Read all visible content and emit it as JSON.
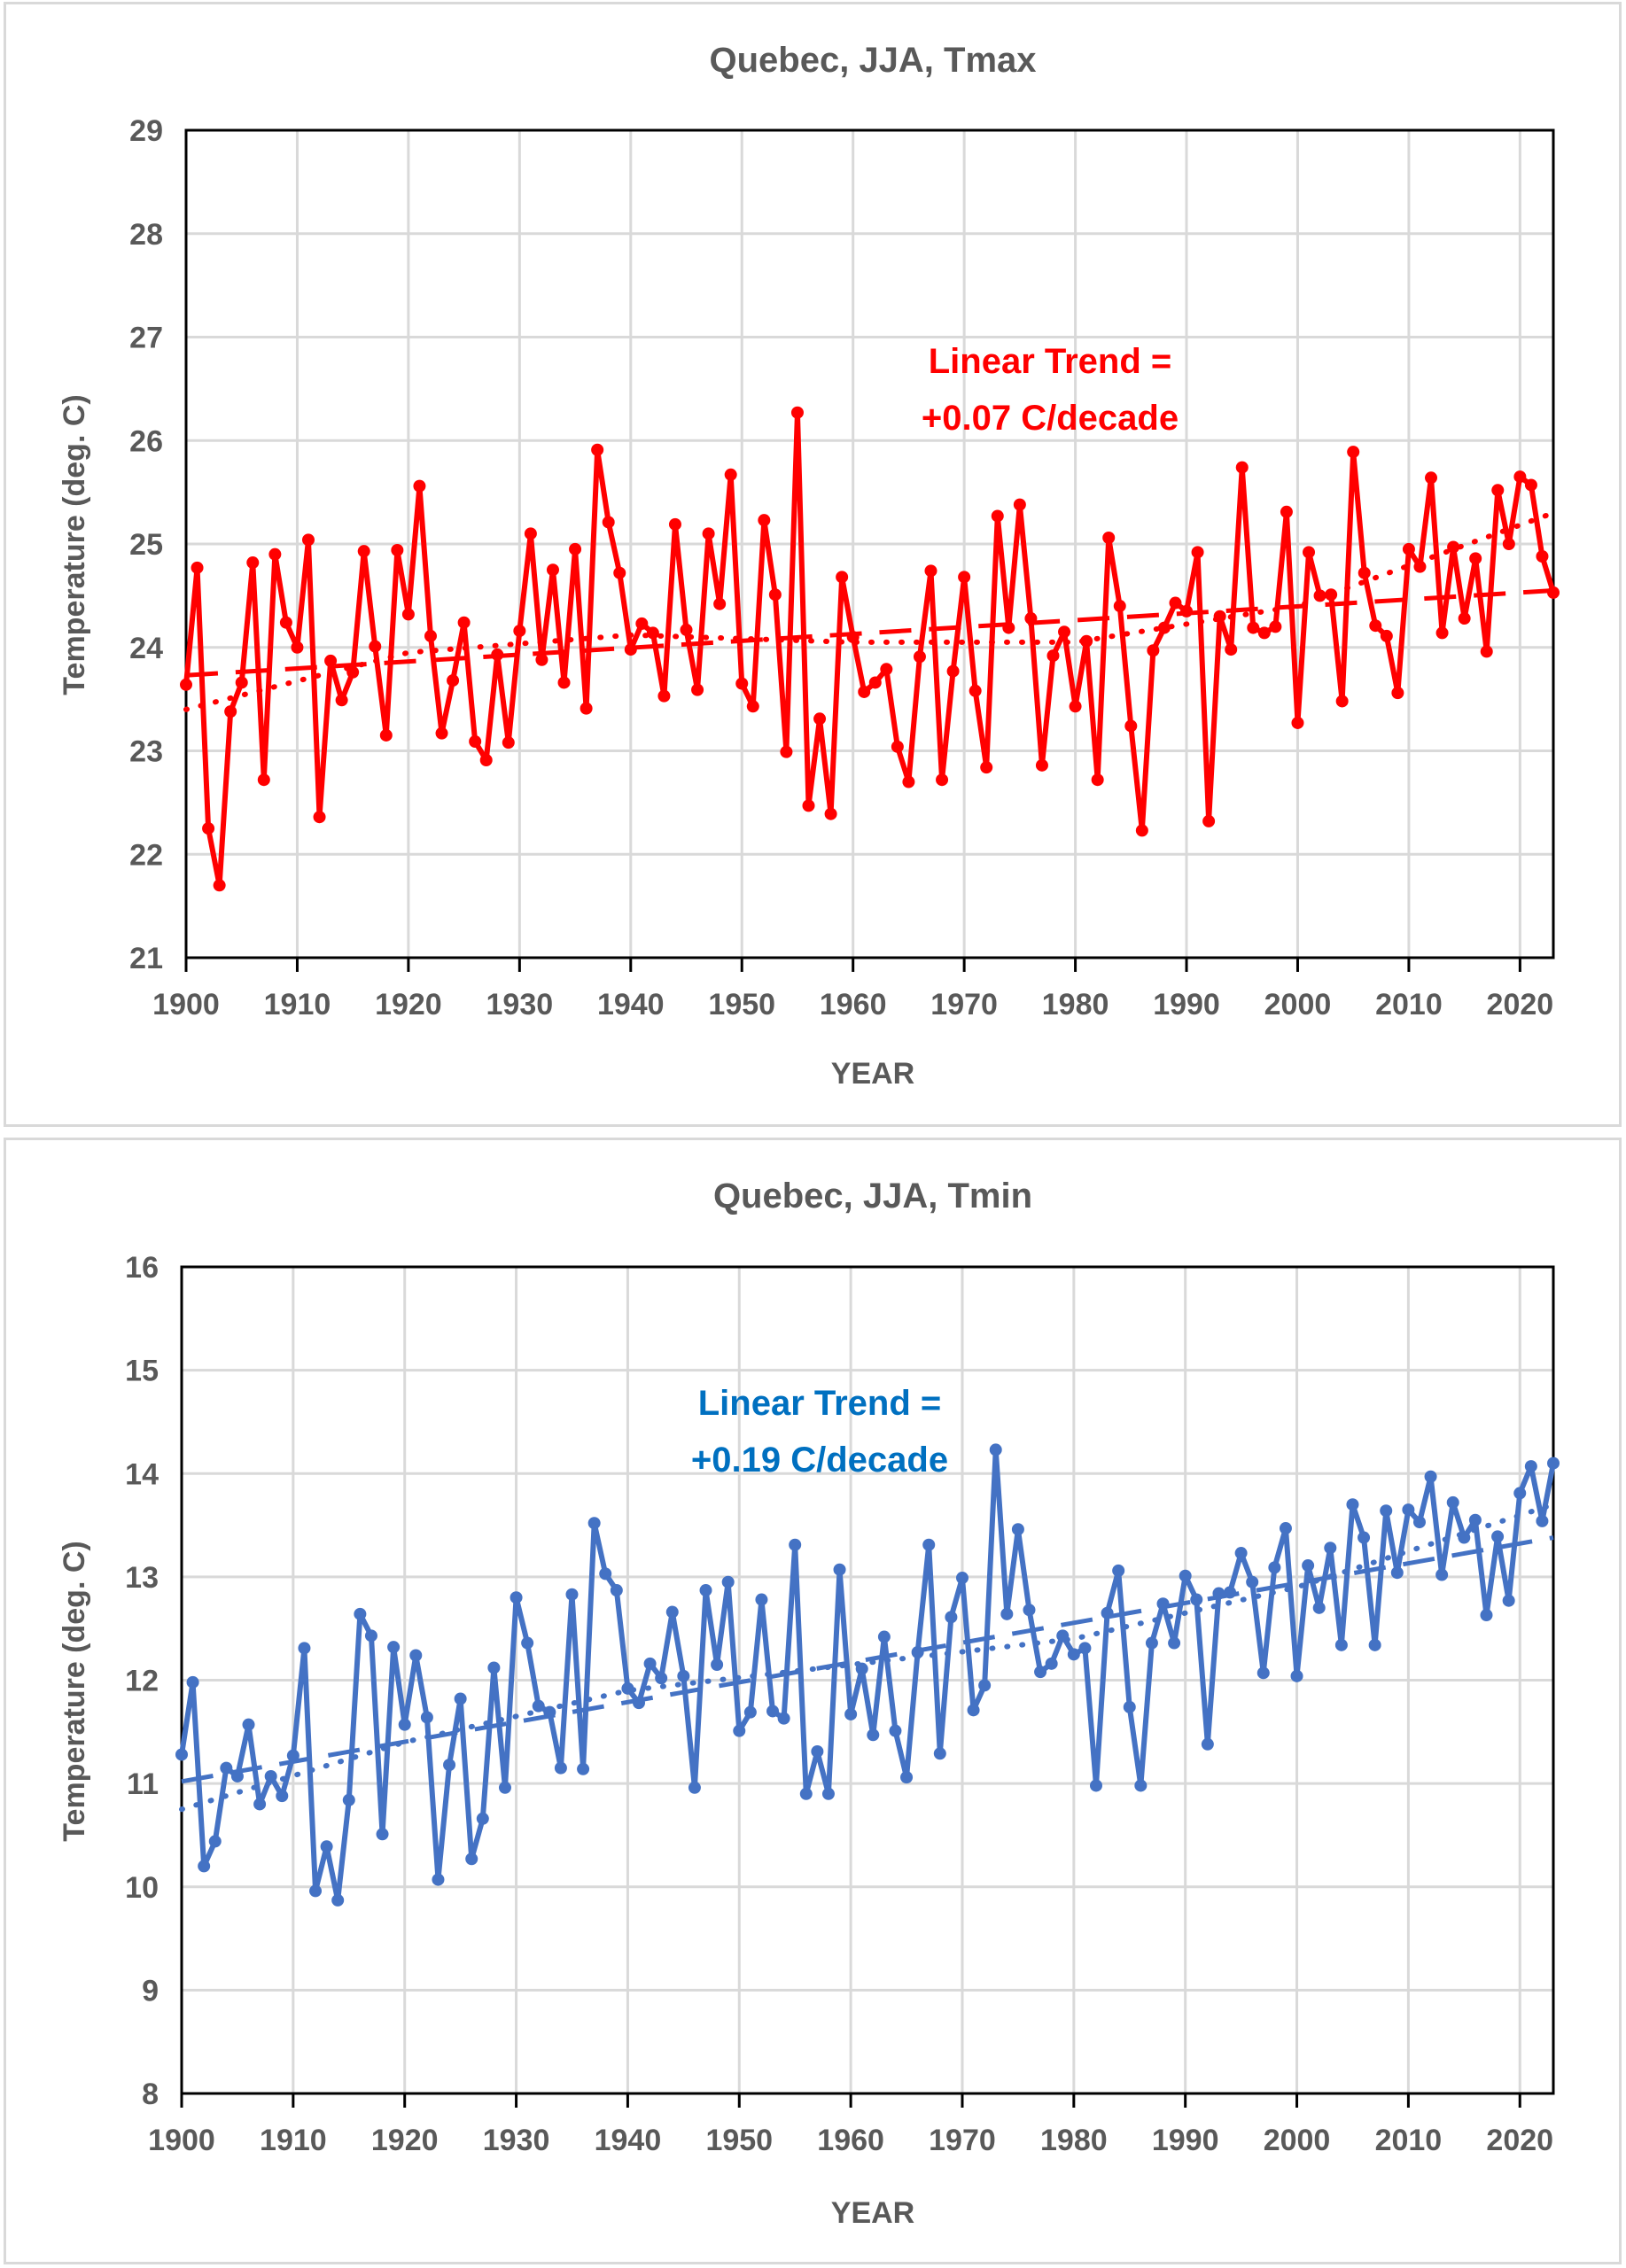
{
  "chart_data": [
    {
      "type": "line",
      "title": "Quebec, JJA, Tmax",
      "xlabel": "YEAR",
      "ylabel": "Temperature (deg. C)",
      "xlim": [
        1900,
        2023
      ],
      "ylim": [
        21,
        29
      ],
      "xticks": [
        1900,
        1910,
        1920,
        1930,
        1940,
        1950,
        1960,
        1970,
        1980,
        1990,
        2000,
        2010,
        2020
      ],
      "yticks": [
        21,
        22,
        23,
        24,
        25,
        26,
        27,
        28,
        29
      ],
      "grid": true,
      "color": "#ff0000",
      "annotation": [
        "Linear Trend =",
        "+0.07 C/decade"
      ],
      "annotation_color": "#ff0000",
      "x_start": 1900,
      "series": [
        {
          "name": "Tmax",
          "values": [
            23.64,
            24.77,
            22.25,
            21.7,
            23.38,
            23.66,
            24.82,
            22.72,
            24.9,
            24.24,
            24.0,
            25.04,
            22.36,
            23.87,
            23.49,
            23.76,
            24.93,
            24.01,
            23.15,
            24.94,
            24.32,
            25.56,
            24.11,
            23.17,
            23.68,
            24.24,
            23.09,
            22.91,
            23.93,
            23.08,
            24.16,
            25.1,
            23.88,
            24.75,
            23.66,
            24.95,
            23.41,
            25.91,
            25.21,
            24.72,
            23.98,
            24.23,
            24.14,
            23.53,
            25.19,
            24.17,
            23.59,
            25.1,
            24.42,
            25.67,
            23.65,
            23.43,
            25.23,
            24.51,
            22.99,
            26.27,
            22.47,
            23.31,
            22.39,
            24.68,
            24.1,
            23.57,
            23.66,
            23.79,
            23.04,
            22.7,
            23.91,
            24.74,
            22.72,
            23.77,
            24.68,
            23.58,
            22.84,
            25.27,
            24.19,
            25.38,
            24.28,
            22.86,
            23.92,
            24.15,
            23.43,
            24.06,
            22.72,
            25.06,
            24.4,
            23.24,
            22.23,
            23.97,
            24.19,
            24.43,
            24.35,
            24.92,
            22.32,
            24.3,
            23.98,
            25.74,
            24.19,
            24.14,
            24.2,
            25.31,
            23.27,
            24.92,
            24.5,
            24.51,
            23.48,
            25.89,
            24.72,
            24.21,
            24.11,
            23.56,
            24.95,
            24.78,
            25.64,
            24.14,
            24.97,
            24.28,
            24.86,
            23.96,
            25.52,
            25.0,
            25.65,
            25.57,
            24.88,
            24.53
          ]
        }
      ],
      "trend_linear": {
        "style": "dashed",
        "start": 23.73,
        "end": 24.55
      },
      "trend_poly": {
        "style": "dotted",
        "points": [
          [
            1900,
            23.4
          ],
          [
            1920,
            23.95
          ],
          [
            1940,
            24.12
          ],
          [
            1960,
            24.05
          ],
          [
            1980,
            24.05
          ],
          [
            2000,
            24.4
          ],
          [
            2023,
            25.3
          ]
        ]
      }
    },
    {
      "type": "line",
      "title": "Quebec, JJA, Tmin",
      "xlabel": "YEAR",
      "ylabel": "Temperature (deg. C)",
      "xlim": [
        1900,
        2023
      ],
      "ylim": [
        8,
        16
      ],
      "xticks": [
        1900,
        1910,
        1920,
        1930,
        1940,
        1950,
        1960,
        1970,
        1980,
        1990,
        2000,
        2010,
        2020
      ],
      "yticks": [
        8,
        9,
        10,
        11,
        12,
        13,
        14,
        15,
        16
      ],
      "grid": true,
      "color": "#4472c4",
      "annotation": [
        "Linear Trend =",
        "+0.19 C/decade"
      ],
      "annotation_color": "#0070c0",
      "x_start": 1900,
      "series": [
        {
          "name": "Tmin",
          "values": [
            11.28,
            11.98,
            10.2,
            10.44,
            11.15,
            11.07,
            11.57,
            10.8,
            11.07,
            10.88,
            11.27,
            12.31,
            9.96,
            10.39,
            9.87,
            10.84,
            12.64,
            12.43,
            10.51,
            12.32,
            11.57,
            12.24,
            11.64,
            10.07,
            11.18,
            11.82,
            10.27,
            10.66,
            12.12,
            10.96,
            12.8,
            12.36,
            11.75,
            11.69,
            11.15,
            12.83,
            11.14,
            13.52,
            13.03,
            12.87,
            11.92,
            11.78,
            12.16,
            12.02,
            12.66,
            12.04,
            10.96,
            12.87,
            12.15,
            12.95,
            11.51,
            11.69,
            12.78,
            11.7,
            11.63,
            13.31,
            10.9,
            11.31,
            10.9,
            13.07,
            11.67,
            12.11,
            11.47,
            12.42,
            11.51,
            11.06,
            12.27,
            13.31,
            11.29,
            12.61,
            12.99,
            11.71,
            11.95,
            14.23,
            12.64,
            13.46,
            12.68,
            12.08,
            12.16,
            12.43,
            12.25,
            12.31,
            10.98,
            12.65,
            13.06,
            11.74,
            10.98,
            12.36,
            12.74,
            12.36,
            13.01,
            12.78,
            11.38,
            12.84,
            12.85,
            13.23,
            12.95,
            12.07,
            13.09,
            13.47,
            12.04,
            13.11,
            12.7,
            13.28,
            12.34,
            13.7,
            13.38,
            12.34,
            13.64,
            13.04,
            13.65,
            13.53,
            13.97,
            13.02,
            13.72,
            13.38,
            13.55,
            12.63,
            13.39,
            12.77,
            13.81,
            14.07,
            13.54,
            14.1
          ]
        }
      ],
      "trend_linear": {
        "style": "dashed",
        "start": 11.02,
        "end": 13.38
      },
      "trend_poly": {
        "style": "dotted",
        "points": [
          [
            1900,
            10.75
          ],
          [
            1920,
            11.4
          ],
          [
            1940,
            11.9
          ],
          [
            1960,
            12.15
          ],
          [
            1980,
            12.4
          ],
          [
            2000,
            12.9
          ],
          [
            2023,
            13.7
          ]
        ]
      }
    }
  ]
}
